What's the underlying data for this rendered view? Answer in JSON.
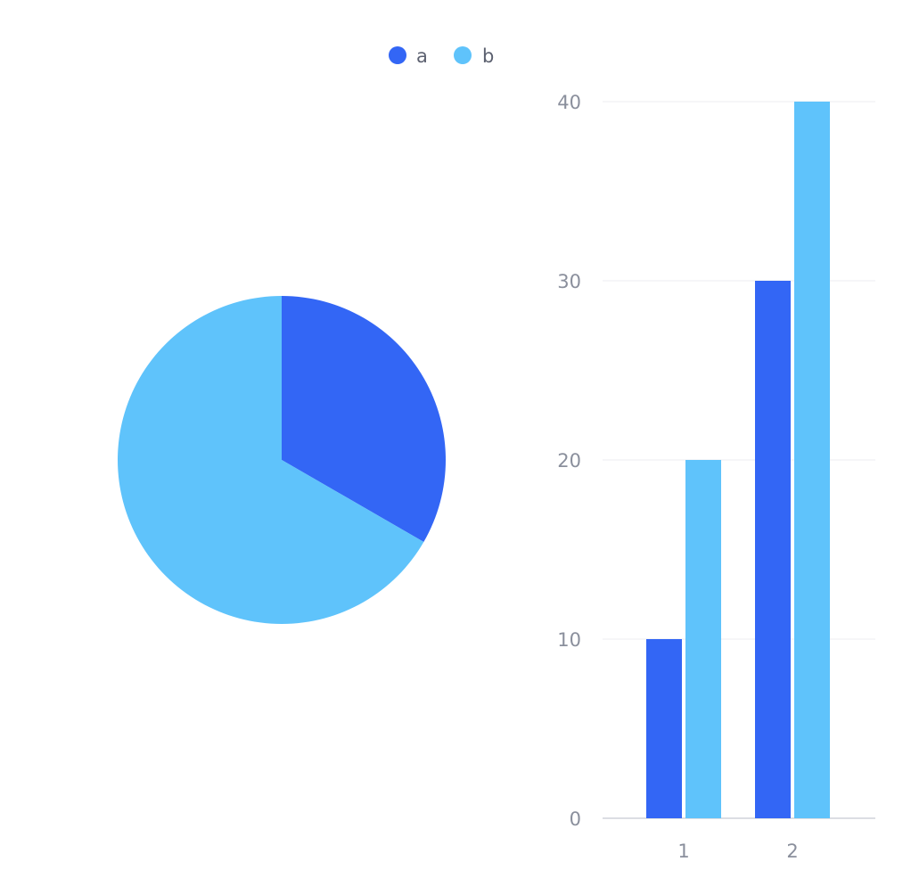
{
  "colors": {
    "a": "#3366f5",
    "b": "#5fc3fb",
    "grid": "#ececf0",
    "axis": "#d0d3da"
  },
  "legend": {
    "items": [
      {
        "label": "a"
      },
      {
        "label": "b"
      }
    ]
  },
  "chart_data": [
    {
      "type": "pie",
      "slices": [
        {
          "name": "a",
          "value": 1
        },
        {
          "name": "b",
          "value": 2
        }
      ]
    },
    {
      "type": "bar",
      "categories": [
        "1",
        "2"
      ],
      "series": [
        {
          "name": "a",
          "values": [
            10,
            30
          ]
        },
        {
          "name": "b",
          "values": [
            20,
            40
          ]
        }
      ],
      "yticks": [
        "0",
        "10",
        "20",
        "30",
        "40"
      ],
      "ylim": [
        0,
        40
      ],
      "grid": true,
      "legend_position": "top-center"
    }
  ]
}
